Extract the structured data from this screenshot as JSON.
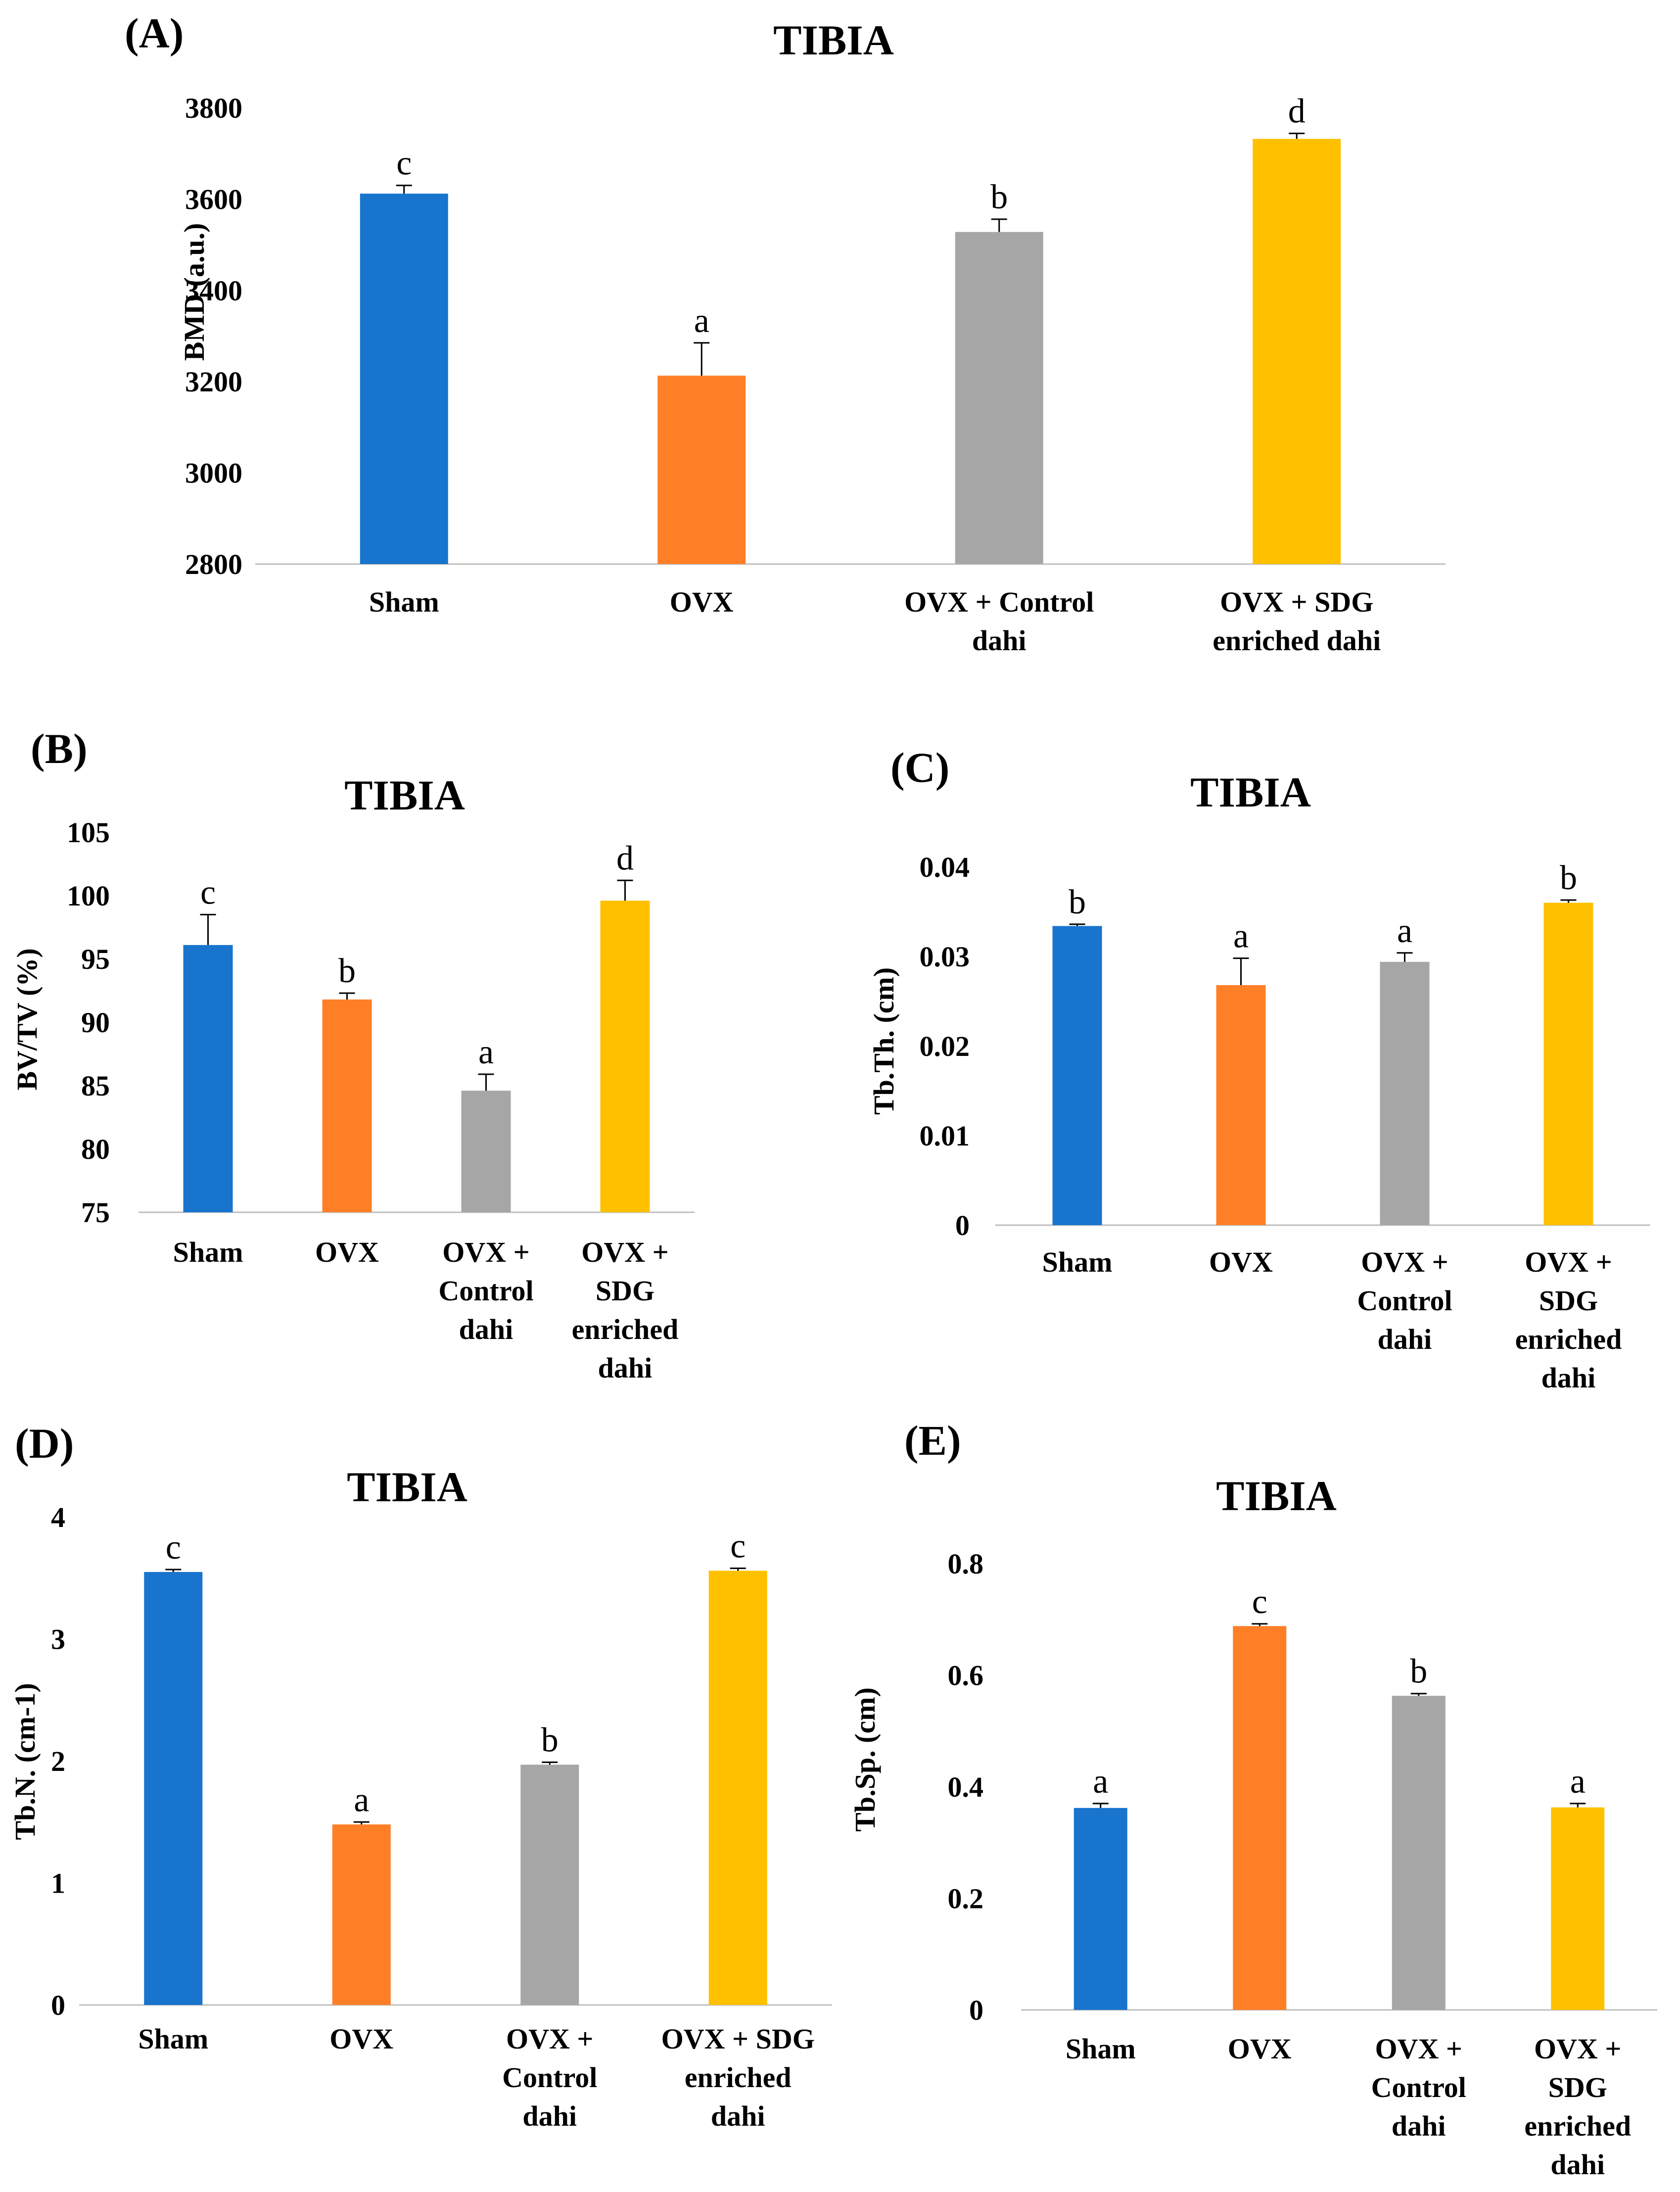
{
  "colors": [
    "#1874CD",
    "#FF7F27",
    "#A6A6A6",
    "#FFC000"
  ],
  "chart_data": [
    {
      "type": "bar",
      "panel": "(A)",
      "title": "TIBIA",
      "ylabel": "BMD (a.u.)",
      "ylim": [
        2800,
        3800
      ],
      "yticks": [
        2800,
        3000,
        3200,
        3400,
        3600,
        3800
      ],
      "categories": [
        [
          "Sham"
        ],
        [
          "OVX"
        ],
        [
          "OVX + Control",
          "dahi"
        ],
        [
          "OVX + SDG",
          "enriched dahi"
        ]
      ],
      "values": [
        3612,
        3213,
        3528,
        3732
      ],
      "errors": [
        18,
        72,
        28,
        12
      ],
      "labels": [
        "c",
        "a",
        "b",
        "d"
      ]
    },
    {
      "type": "bar",
      "panel": "(B)",
      "title": "TIBIA",
      "ylabel": "BV/TV (%)",
      "ylim": [
        75,
        105
      ],
      "yticks": [
        75,
        80,
        85,
        90,
        95,
        100,
        105
      ],
      "categories": [
        [
          "Sham"
        ],
        [
          "OVX"
        ],
        [
          "OVX +",
          "Control",
          "dahi"
        ],
        [
          "OVX +",
          "SDG",
          "enriched",
          "dahi"
        ]
      ],
      "values": [
        96.1,
        91.8,
        84.6,
        99.6
      ],
      "errors": [
        2.4,
        0.5,
        1.3,
        1.6
      ],
      "labels": [
        "c",
        "b",
        "a",
        "d"
      ]
    },
    {
      "type": "bar",
      "panel": "(C)",
      "title": "TIBIA",
      "ylabel": "Tb.Th. (cm)",
      "ylim": [
        0,
        0.04
      ],
      "yticks": [
        0,
        0.01,
        0.02,
        0.03,
        0.04
      ],
      "categories": [
        [
          "Sham"
        ],
        [
          "OVX"
        ],
        [
          "OVX +",
          "Control",
          "dahi"
        ],
        [
          "OVX +",
          "SDG",
          "enriched",
          "dahi"
        ]
      ],
      "values": [
        0.0334,
        0.0268,
        0.0294,
        0.036
      ],
      "errors": [
        0.0002,
        0.003,
        0.001,
        0.0003
      ],
      "labels": [
        "b",
        "a",
        "a",
        "b"
      ]
    },
    {
      "type": "bar",
      "panel": "(D)",
      "title": "TIBIA",
      "ylabel": "Tb.N. (cm-1)",
      "ylim": [
        0,
        4
      ],
      "yticks": [
        0,
        1,
        2,
        3,
        4
      ],
      "categories": [
        [
          "Sham"
        ],
        [
          "OVX"
        ],
        [
          "OVX +",
          "Control",
          "dahi"
        ],
        [
          "OVX + SDG",
          "enriched",
          "dahi"
        ]
      ],
      "values": [
        3.55,
        1.48,
        1.97,
        3.56
      ],
      "errors": [
        0.02,
        0.02,
        0.02,
        0.02
      ],
      "labels": [
        "c",
        "a",
        "b",
        "c"
      ]
    },
    {
      "type": "bar",
      "panel": "(E)",
      "title": "TIBIA",
      "ylabel": "Tb.Sp. (cm)",
      "ylim": [
        0,
        0.8
      ],
      "yticks": [
        0,
        0.2,
        0.4,
        0.6,
        0.8
      ],
      "categories": [
        [
          "Sham"
        ],
        [
          "OVX"
        ],
        [
          "OVX +",
          "Control",
          "dahi"
        ],
        [
          "OVX +",
          "SDG",
          "enriched",
          "dahi"
        ]
      ],
      "values": [
        0.362,
        0.688,
        0.563,
        0.363
      ],
      "errors": [
        0.008,
        0.004,
        0.004,
        0.007
      ],
      "labels": [
        "a",
        "c",
        "b",
        "a"
      ]
    }
  ]
}
